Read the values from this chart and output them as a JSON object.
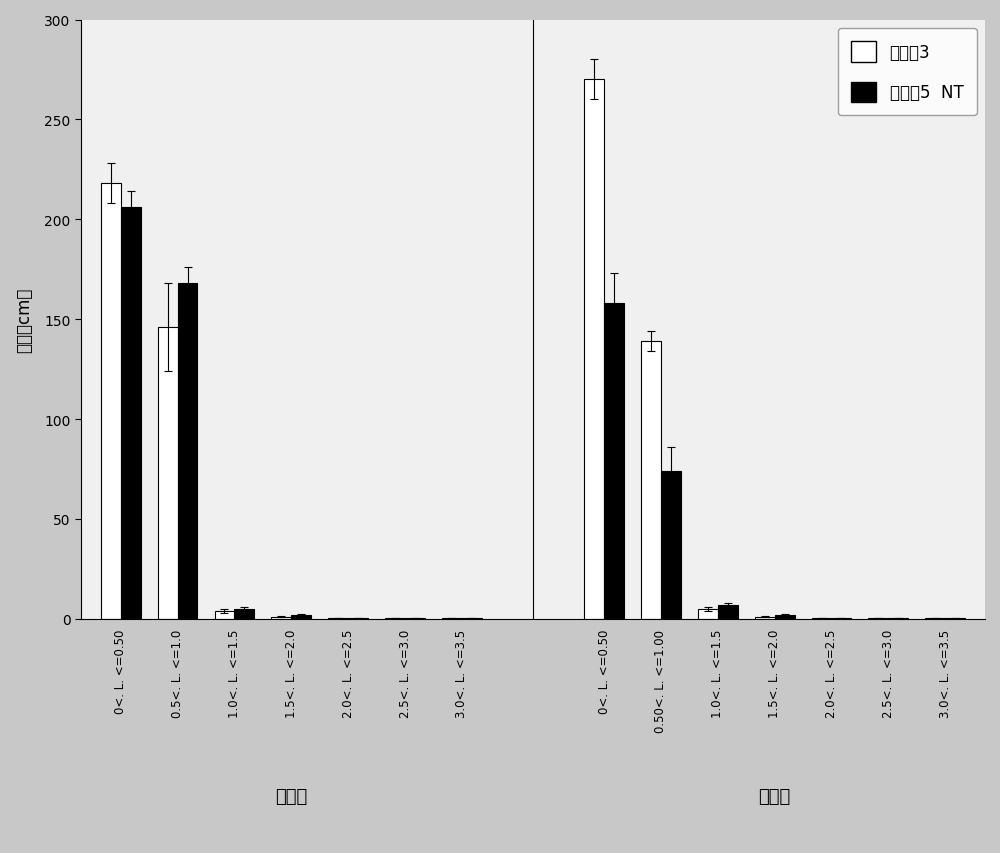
{
  "control_labels": [
    "0<. L. <=0.50",
    "0.5<. L. <=1.0",
    "1.0<. L. <=1.5",
    "1.5<. L. <=2.0",
    "2.0<. L. <=2.5",
    "2.5<. L. <=3.0",
    "3.0<. L. <=3.5"
  ],
  "treatment_labels": [
    "0<. L. <=0.50",
    "0.50<. L. <=1.00",
    "1.0<. L. <=1.5",
    "1.5<. L. <=2.0",
    "2.0<. L. <=2.5",
    "2.5<. L. <=3.0",
    "3.0<. L. <=3.5"
  ],
  "white_values_control": [
    218,
    146,
    4,
    1,
    0.3,
    0.3,
    0.3
  ],
  "black_values_control": [
    206,
    168,
    5,
    2,
    0.3,
    0.3,
    0.3
  ],
  "white_errors_control": [
    10,
    22,
    1.0,
    0.3,
    0,
    0,
    0
  ],
  "black_errors_control": [
    8,
    8,
    1.0,
    0.3,
    0,
    0,
    0
  ],
  "white_values_treatment": [
    270,
    139,
    5,
    1,
    0.3,
    0.3,
    0.3
  ],
  "black_values_treatment": [
    158,
    74,
    7,
    2,
    0.3,
    0.3,
    0.3
  ],
  "white_errors_treatment": [
    10,
    5,
    1.0,
    0.3,
    0,
    0,
    0
  ],
  "black_errors_treatment": [
    15,
    12,
    1.0,
    0.3,
    0,
    0,
    0
  ],
  "ylabel": "根长（cm）",
  "group_label_control": "对照组",
  "group_label_treatment": "处理组",
  "legend_white": "转基因3",
  "legend_black": "转基因5  NT",
  "ylim": [
    0,
    300
  ],
  "yticks": [
    0,
    50,
    100,
    150,
    200,
    250,
    300
  ],
  "bar_width": 0.35,
  "white_color": "#ffffff",
  "black_color": "#000000",
  "edge_color": "#000000"
}
